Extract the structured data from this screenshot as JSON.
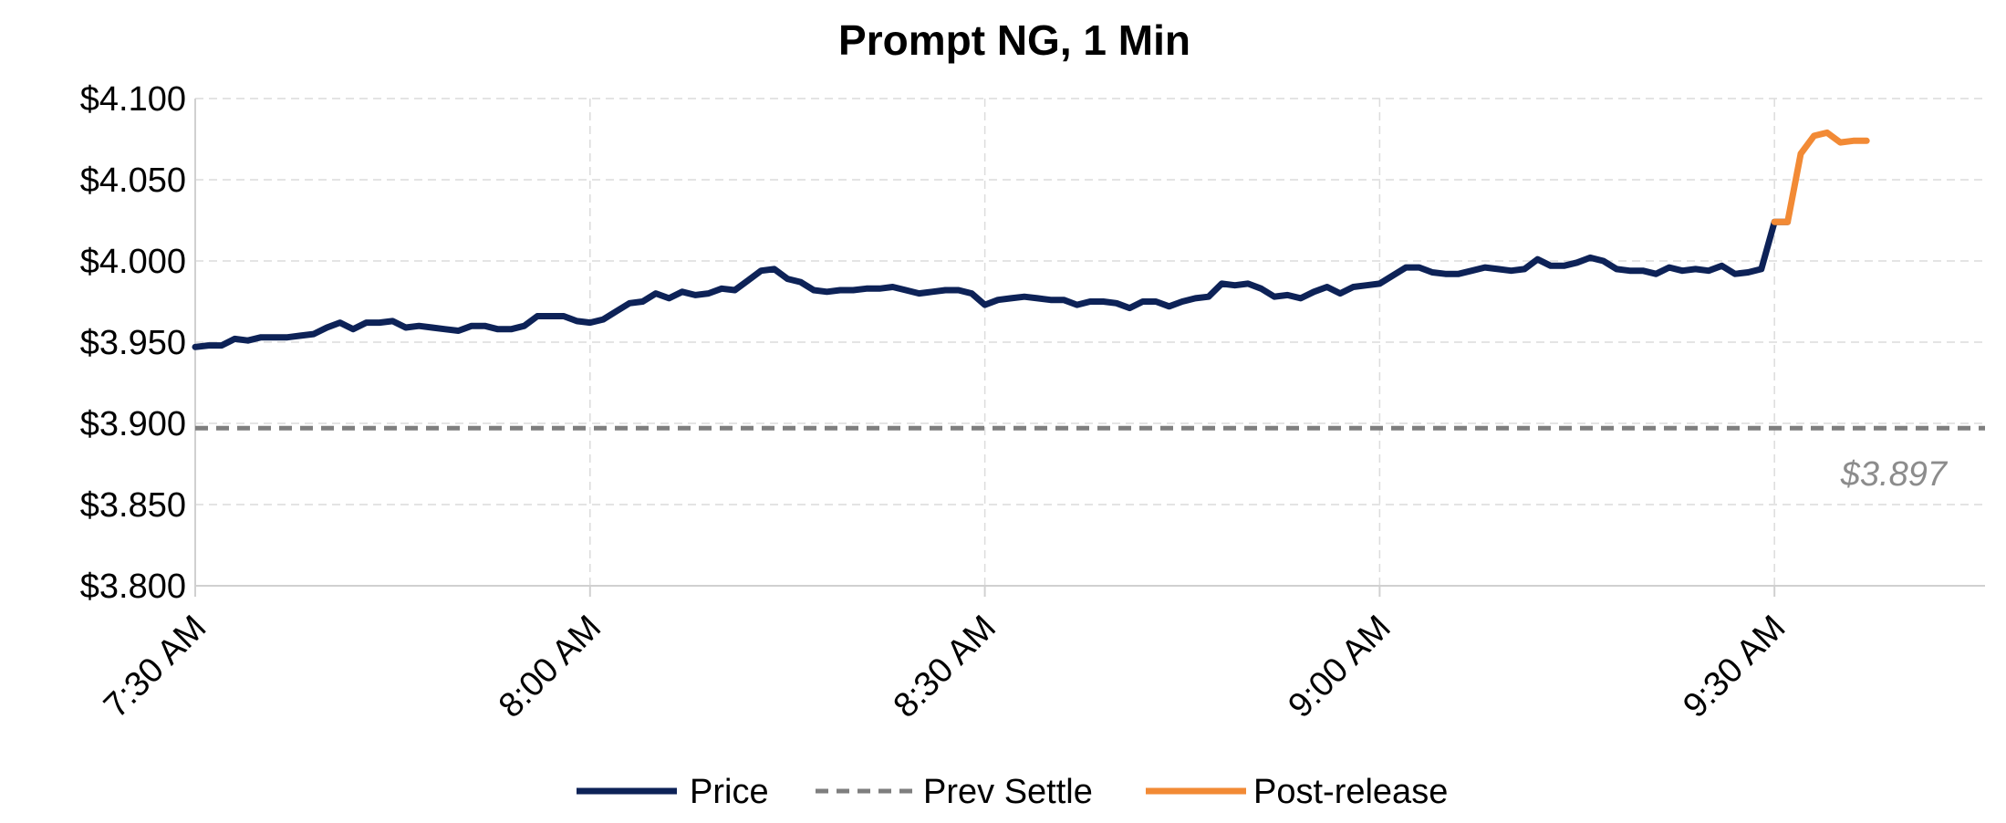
{
  "chart_data": {
    "type": "line",
    "title": "Prompt NG, 1 Min",
    "xlabel": "",
    "ylabel": "",
    "ylim": [
      3.8,
      4.1
    ],
    "y_ticks": [
      {
        "value": 3.8,
        "label": "$3.800"
      },
      {
        "value": 3.85,
        "label": "$3.850"
      },
      {
        "value": 3.9,
        "label": "$3.900"
      },
      {
        "value": 3.95,
        "label": "$3.950"
      },
      {
        "value": 4.0,
        "label": "$4.000"
      },
      {
        "value": 4.05,
        "label": "$4.050"
      },
      {
        "value": 4.1,
        "label": "$4.100"
      }
    ],
    "x_axis_unit": "minutes after 7:30 AM",
    "xlim": [
      0,
      136
    ],
    "x_ticks": [
      {
        "value": 0,
        "label": "7:30 AM"
      },
      {
        "value": 30,
        "label": "8:00 AM"
      },
      {
        "value": 60,
        "label": "8:30 AM"
      },
      {
        "value": 90,
        "label": "9:00 AM"
      },
      {
        "value": 120,
        "label": "9:30 AM"
      }
    ],
    "grid": true,
    "legend_position": "bottom",
    "series": [
      {
        "name": "Price",
        "color": "#0d2257",
        "x": [
          0,
          1,
          2,
          3,
          4,
          5,
          6,
          7,
          8,
          9,
          10,
          11,
          12,
          13,
          14,
          15,
          16,
          17,
          18,
          19,
          20,
          21,
          22,
          23,
          24,
          25,
          26,
          27,
          28,
          29,
          30,
          31,
          32,
          33,
          34,
          35,
          36,
          37,
          38,
          39,
          40,
          41,
          42,
          43,
          44,
          45,
          46,
          47,
          48,
          49,
          50,
          51,
          52,
          53,
          54,
          55,
          56,
          57,
          58,
          59,
          60,
          61,
          62,
          63,
          64,
          65,
          66,
          67,
          68,
          69,
          70,
          71,
          72,
          73,
          74,
          75,
          76,
          77,
          78,
          79,
          80,
          81,
          82,
          83,
          84,
          85,
          86,
          87,
          88,
          89,
          90,
          91,
          92,
          93,
          94,
          95,
          96,
          97,
          98,
          99,
          100,
          101,
          102,
          103,
          104,
          105,
          106,
          107,
          108,
          109,
          110,
          111,
          112,
          113,
          114,
          115,
          116,
          117,
          118,
          119,
          120,
          121
        ],
        "values": [
          3.947,
          3.948,
          3.948,
          3.952,
          3.951,
          3.953,
          3.953,
          3.953,
          3.954,
          3.955,
          3.959,
          3.962,
          3.958,
          3.962,
          3.962,
          3.963,
          3.959,
          3.96,
          3.959,
          3.958,
          3.957,
          3.96,
          3.96,
          3.958,
          3.958,
          3.96,
          3.966,
          3.966,
          3.966,
          3.963,
          3.962,
          3.964,
          3.969,
          3.974,
          3.975,
          3.98,
          3.977,
          3.981,
          3.979,
          3.98,
          3.983,
          3.982,
          3.988,
          3.994,
          3.995,
          3.989,
          3.987,
          3.982,
          3.981,
          3.982,
          3.982,
          3.983,
          3.983,
          3.984,
          3.982,
          3.98,
          3.981,
          3.982,
          3.982,
          3.98,
          3.973,
          3.976,
          3.977,
          3.978,
          3.977,
          3.976,
          3.976,
          3.973,
          3.975,
          3.975,
          3.974,
          3.971,
          3.975,
          3.975,
          3.972,
          3.975,
          3.977,
          3.978,
          3.986,
          3.985,
          3.986,
          3.983,
          3.978,
          3.979,
          3.977,
          3.981,
          3.984,
          3.98,
          3.984,
          3.985,
          3.986,
          3.991,
          3.996,
          3.996,
          3.993,
          3.992,
          3.992,
          3.994,
          3.996,
          3.995,
          3.994,
          3.995,
          4.001,
          3.997,
          3.997,
          3.999,
          4.002,
          4.0,
          3.995,
          3.994,
          3.994,
          3.992,
          3.996,
          3.994,
          3.995,
          3.994,
          3.997,
          3.992,
          3.993,
          3.995,
          4.024,
          4.024
        ]
      },
      {
        "name": "Prev Settle",
        "color": "#7f7f7f",
        "dashed": true,
        "x": [
          0,
          136
        ],
        "values": [
          3.897,
          3.897
        ]
      },
      {
        "name": "Post-release",
        "color": "#f28a35",
        "x": [
          120,
          121,
          122,
          123,
          124,
          125,
          126,
          127
        ],
        "values": [
          4.024,
          4.024,
          4.066,
          4.077,
          4.079,
          4.073,
          4.074,
          4.074
        ]
      }
    ],
    "annotations": [
      {
        "text": "$3.897"
      }
    ]
  }
}
